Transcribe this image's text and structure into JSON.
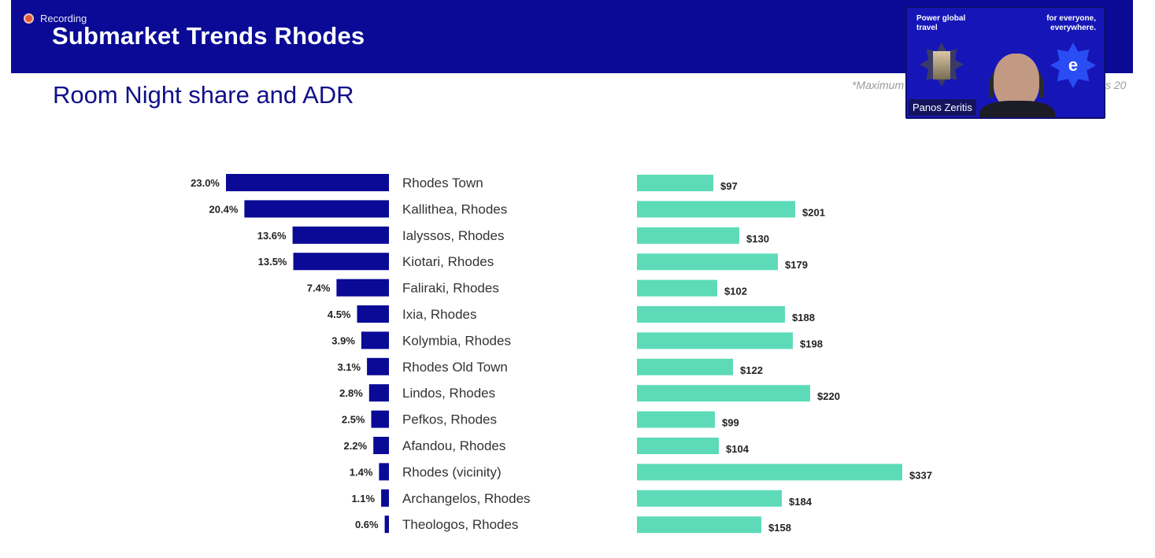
{
  "recording": {
    "label": "Recording"
  },
  "header": {
    "title": "Submarket Trends Rhodes"
  },
  "slide": {
    "subtitle": "Room Night share and ADR",
    "footnote_left": "*Maximum",
    "footnote_right": "s 20"
  },
  "video": {
    "participant_name": "Panos Zeritis",
    "promo_left": "Power global travel",
    "promo_right": "for everyone, everywhere.",
    "logo_letter": "e"
  },
  "colors": {
    "banner": "#0a0a96",
    "share_bar": "#0a0a96",
    "adr_bar": "#5ddbb8",
    "subtitle": "#10108a"
  },
  "chart_data": {
    "type": "bar",
    "categories": [
      "Rhodes Town",
      "Kallithea, Rhodes",
      "Ialyssos, Rhodes",
      "Kiotari, Rhodes",
      "Faliraki, Rhodes",
      "Ixia, Rhodes",
      "Kolymbia, Rhodes",
      "Rhodes Old Town",
      "Lindos, Rhodes",
      "Pefkos, Rhodes",
      "Afandou, Rhodes",
      "Rhodes (vicinity)",
      "Archangelos, Rhodes",
      "Theologos, Rhodes"
    ],
    "series": [
      {
        "values": [
          23.0,
          20.4,
          13.6,
          13.5,
          7.4,
          4.5,
          3.9,
          3.1,
          2.8,
          2.5,
          2.2,
          1.4,
          1.1,
          0.6
        ],
        "labels": [
          "23.0%",
          "20.4%",
          "13.6%",
          "13.5%",
          "7.4%",
          "4.5%",
          "3.9%",
          "3.1%",
          "2.8%",
          "2.5%",
          "2.2%",
          "1.4%",
          "1.1%",
          "0.6%"
        ]
      },
      {
        "values": [
          97,
          201,
          130,
          179,
          102,
          188,
          198,
          122,
          220,
          99,
          104,
          337,
          184,
          158
        ],
        "labels": [
          "$97",
          "$201",
          "$130",
          "$179",
          "$102",
          "$188",
          "$198",
          "$122",
          "$220",
          "$99",
          "$104",
          "$337",
          "$184",
          "$158"
        ]
      }
    ],
    "orientation": "horizontal",
    "grid": false,
    "legend": "none"
  }
}
